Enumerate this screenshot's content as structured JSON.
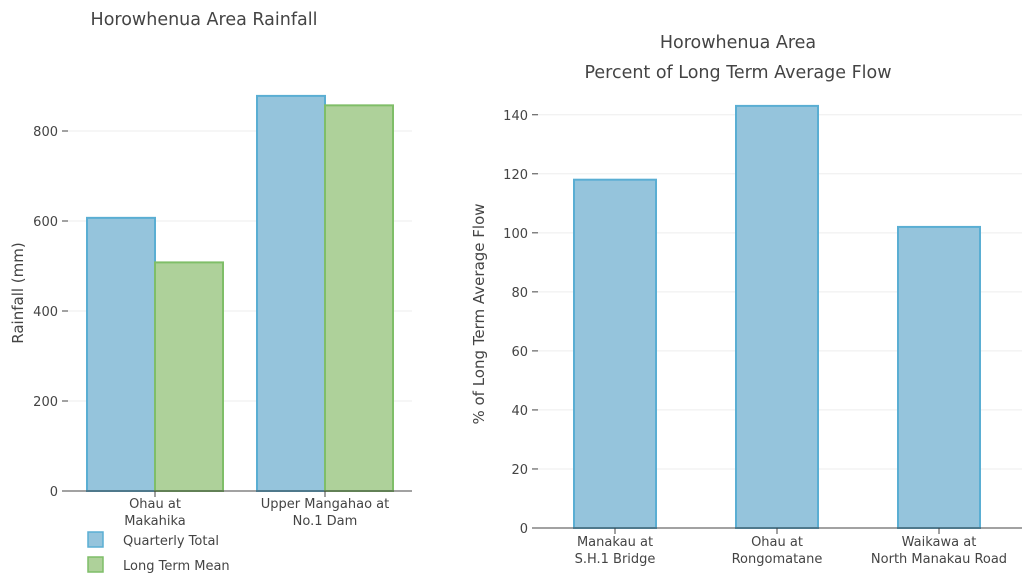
{
  "chart_data": [
    {
      "type": "bar",
      "title": "Horowhenua Area Rainfall",
      "ylabel": "Rainfall (mm)",
      "xlabel": "",
      "categories": [
        [
          "Ohau at",
          "Makahika"
        ],
        [
          "Upper Mangahao at",
          "No.1 Dam"
        ]
      ],
      "series": [
        {
          "name": "Quarterly Total",
          "values": [
            607,
            878
          ],
          "color": "#95c4dc",
          "stroke": "#5aaed3"
        },
        {
          "name": "Long Term Mean",
          "values": [
            508,
            857
          ],
          "color": "#aed19a",
          "stroke": "#7fbe68"
        }
      ],
      "ylim": [
        0,
        880
      ],
      "yticks": [
        0,
        200,
        400,
        600,
        800
      ],
      "grid": true,
      "legend": "bottom-left"
    },
    {
      "type": "bar",
      "title": [
        "Horowhenua Area",
        "Percent of Long Term Average Flow"
      ],
      "ylabel": "% of Long Term Average Flow",
      "xlabel": "",
      "categories": [
        [
          "Manakau at",
          "S.H.1 Bridge"
        ],
        [
          "Ohau at",
          "Rongomatane"
        ],
        [
          "Waikawa at",
          "North Manakau Road"
        ]
      ],
      "series": [
        {
          "name": "",
          "values": [
            118,
            143,
            102
          ],
          "color": "#95c4dc",
          "stroke": "#5aaed3"
        }
      ],
      "ylim": [
        0,
        145
      ],
      "yticks": [
        0,
        20,
        40,
        60,
        80,
        100,
        120,
        140
      ],
      "grid": true,
      "legend": "none"
    }
  ]
}
